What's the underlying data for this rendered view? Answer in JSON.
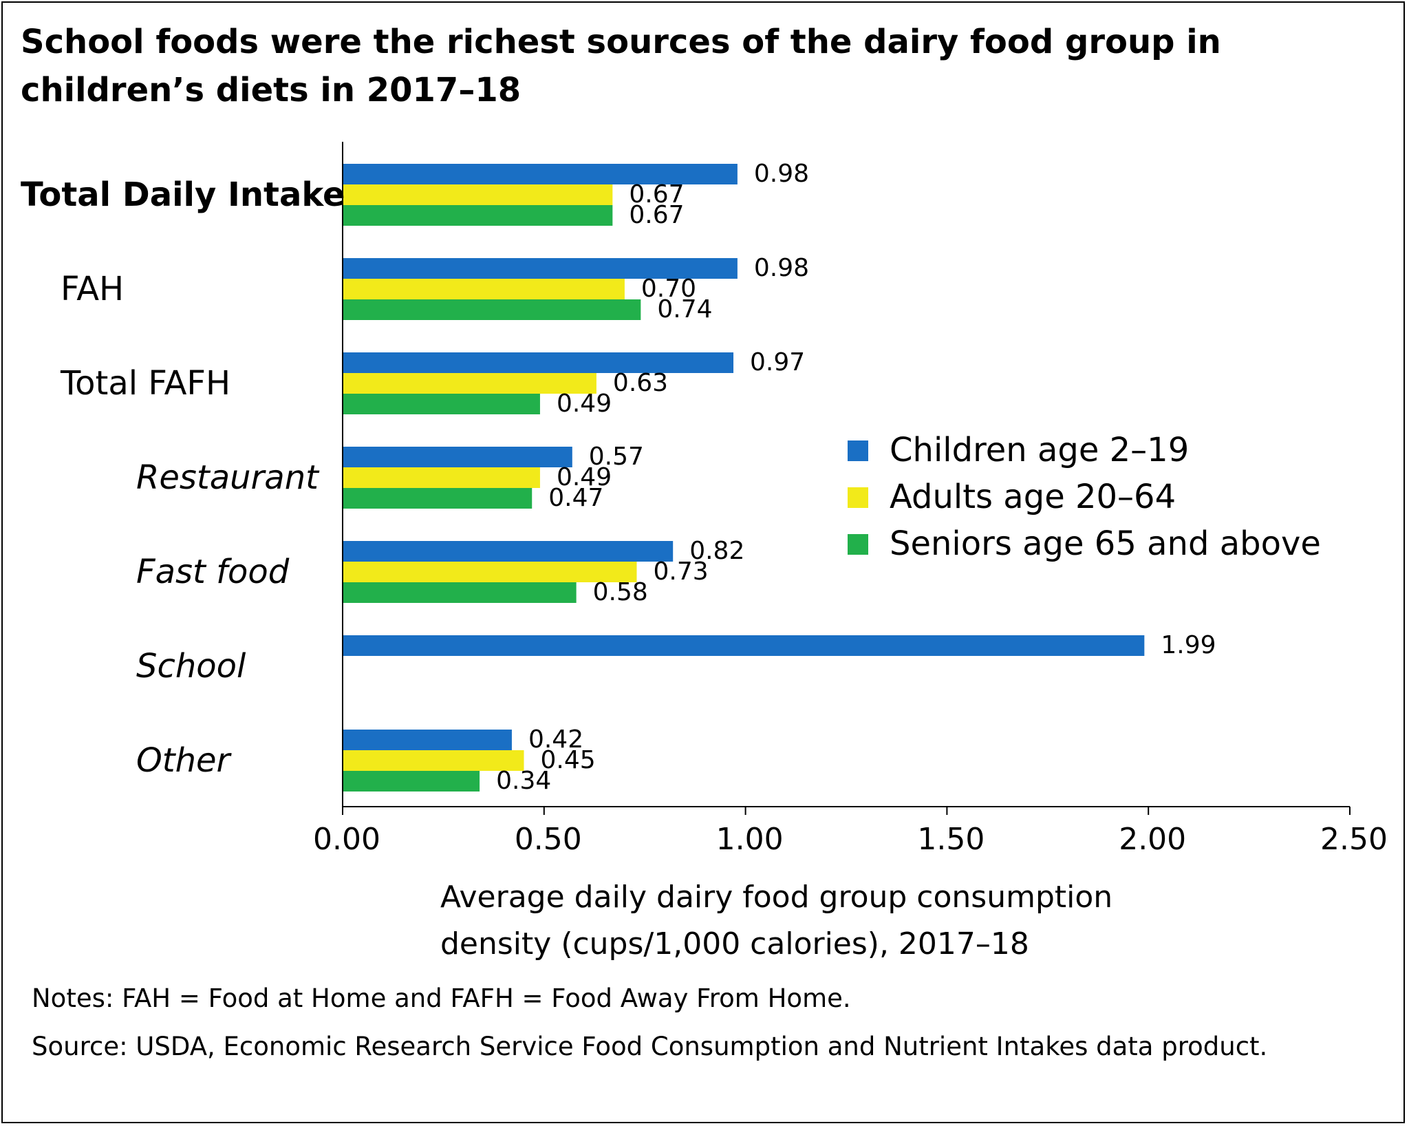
{
  "title": "School foods were the richest sources of the dairy food group in children’s diets in 2017–18",
  "notes": "Notes: FAH = Food at Home and FAFH = Food Away From Home.",
  "source": "Source: USDA, Economic Research Service Food Consumption and Nutrient Intakes data product.",
  "chart_data": {
    "type": "bar",
    "orientation": "horizontal",
    "categories": [
      "Total Daily Intake",
      "FAH",
      "Total FAFH",
      "Restaurant",
      "Fast food",
      "School",
      "Other"
    ],
    "category_styles": [
      "bold",
      "normal",
      "normal",
      "italic",
      "italic",
      "italic",
      "italic"
    ],
    "series": [
      {
        "name": "Children age 2–19",
        "color": "#1a6fc4",
        "values": [
          0.98,
          0.98,
          0.97,
          0.57,
          0.82,
          1.99,
          0.42
        ]
      },
      {
        "name": "Adults age 20–64",
        "color": "#f2ea1a",
        "values": [
          0.67,
          0.7,
          0.63,
          0.49,
          0.73,
          null,
          0.45
        ]
      },
      {
        "name": "Seniors age 65 and above",
        "color": "#22b04b",
        "values": [
          0.67,
          0.74,
          0.49,
          0.47,
          0.58,
          null,
          0.34
        ]
      }
    ],
    "data_labels": [
      [
        "0.98",
        "0.98",
        "0.97",
        "0.57",
        "0.82",
        "1.99",
        "0.42"
      ],
      [
        "0.67",
        "0.70",
        "0.63",
        "0.49",
        "0.73",
        "",
        "0.45"
      ],
      [
        "0.67",
        "0.74",
        "0.49",
        "0.47",
        "0.58",
        "",
        "0.34"
      ]
    ],
    "xlim": [
      0,
      2.5
    ],
    "xticks": [
      0,
      0.5,
      1.0,
      1.5,
      2.0,
      2.5
    ],
    "xtick_labels": [
      "0.00",
      "0.50",
      "1.00",
      "1.50",
      "2.00",
      "2.50"
    ],
    "xlabel_lines": [
      "Average daily dairy food group consumption",
      "density (cups/1,000 calories), 2017–18"
    ],
    "grid": false,
    "legend_position": "right"
  }
}
